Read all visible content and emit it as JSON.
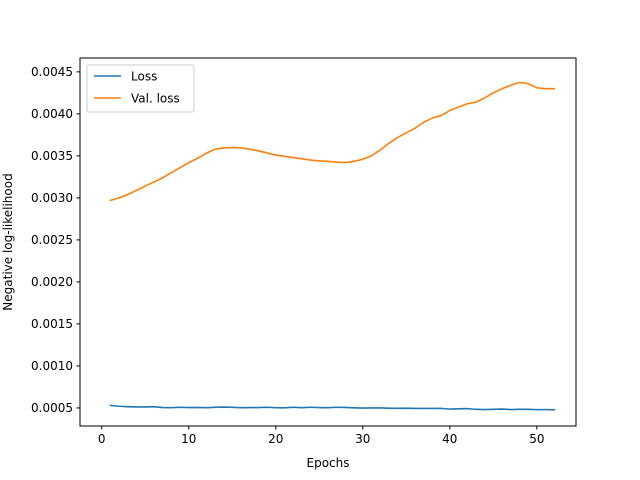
{
  "chart_data": {
    "type": "line",
    "title": "",
    "xlabel": "Epochs",
    "ylabel": "Negative log-likelihood",
    "xlim": [
      -2.5,
      54.5
    ],
    "ylim": [
      0.000285,
      0.004665
    ],
    "xticks": [
      0,
      10,
      20,
      30,
      40,
      50
    ],
    "xtick_labels": [
      "0",
      "10",
      "20",
      "30",
      "40",
      "50"
    ],
    "yticks": [
      0.0005,
      0.001,
      0.0015,
      0.002,
      0.0025,
      0.003,
      0.0035,
      0.004,
      0.0045
    ],
    "ytick_labels": [
      "0.0005",
      "0.0010",
      "0.0015",
      "0.0020",
      "0.0025",
      "0.0030",
      "0.0035",
      "0.0040",
      "0.0045"
    ],
    "grid": false,
    "legend_position": "top-left",
    "x": [
      1,
      2,
      3,
      4,
      5,
      6,
      7,
      8,
      9,
      10,
      11,
      12,
      13,
      14,
      15,
      16,
      17,
      18,
      19,
      20,
      21,
      22,
      23,
      24,
      25,
      26,
      27,
      28,
      29,
      30,
      31,
      32,
      33,
      34,
      35,
      36,
      37,
      38,
      39,
      40,
      41,
      42,
      43,
      44,
      45,
      46,
      47,
      48,
      49,
      50,
      51,
      52
    ],
    "series": [
      {
        "name": "Loss",
        "color": "#1f77b4",
        "values": [
          0.00053,
          0.00052,
          0.000515,
          0.000512,
          0.000512,
          0.000515,
          0.000505,
          0.000503,
          0.000508,
          0.000505,
          0.000506,
          0.000503,
          0.000507,
          0.00051,
          0.000507,
          0.000503,
          0.000505,
          0.000505,
          0.000508,
          0.000503,
          0.000502,
          0.000508,
          0.000503,
          0.000508,
          0.000505,
          0.000503,
          0.000508,
          0.000506,
          0.000502,
          0.000498,
          0.0005,
          0.0005,
          0.000497,
          0.000495,
          0.000497,
          0.000494,
          0.000494,
          0.000494,
          0.000495,
          0.000486,
          0.00049,
          0.000492,
          0.000483,
          0.000481,
          0.000483,
          0.000486,
          0.000481,
          0.000483,
          0.000484,
          0.00048,
          0.00048,
          0.000478
        ]
      },
      {
        "name": "Val. loss",
        "color": "#ff7f0e",
        "values": [
          0.00297,
          0.003,
          0.00304,
          0.00309,
          0.00314,
          0.00319,
          0.00324,
          0.0033,
          0.00336,
          0.00342,
          0.00347,
          0.00353,
          0.00358,
          0.003595,
          0.0036,
          0.003595,
          0.00358,
          0.00356,
          0.003535,
          0.00351,
          0.003495,
          0.00348,
          0.003465,
          0.00345,
          0.00344,
          0.003435,
          0.003425,
          0.00342,
          0.003435,
          0.00346,
          0.0035,
          0.00357,
          0.00365,
          0.00372,
          0.003775,
          0.00383,
          0.0039,
          0.00395,
          0.00398,
          0.00404,
          0.00408,
          0.00412,
          0.00414,
          0.00419,
          0.00425,
          0.0043,
          0.00434,
          0.004375,
          0.00436,
          0.00431,
          0.0043,
          0.0043
        ]
      }
    ]
  }
}
